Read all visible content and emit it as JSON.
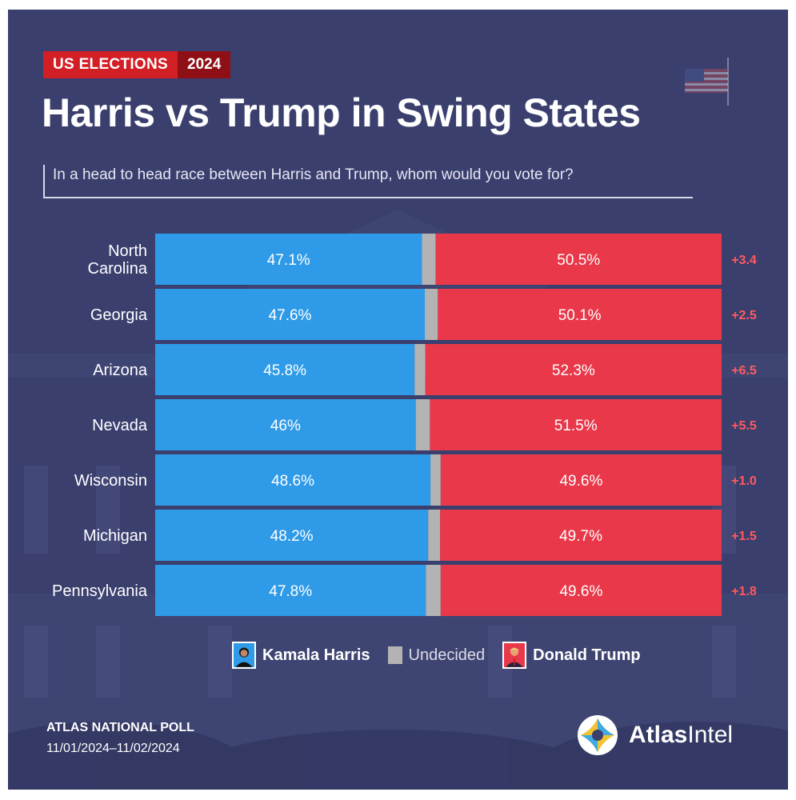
{
  "header": {
    "tag_left": "US ELECTIONS",
    "tag_right": "2024",
    "title": "Harris vs Trump in Swing States",
    "subtitle": "In a head to head race between Harris and Trump, whom would you vote for?"
  },
  "chart_data": {
    "type": "bar",
    "stacked": true,
    "orientation": "horizontal",
    "categories": [
      "North Carolina",
      "Georgia",
      "Arizona",
      "Nevada",
      "Wisconsin",
      "Michigan",
      "Pennsylvania"
    ],
    "category_label_lines": [
      [
        "North",
        "Carolina"
      ],
      [
        "Georgia"
      ],
      [
        "Arizona"
      ],
      [
        "Nevada"
      ],
      [
        "Wisconsin"
      ],
      [
        "Michigan"
      ],
      [
        "Pennsylvania"
      ]
    ],
    "series": [
      {
        "name": "Kamala Harris",
        "values": [
          47.1,
          47.6,
          45.8,
          46,
          48.6,
          48.2,
          47.8
        ],
        "labels": [
          "47.1%",
          "47.6%",
          "45.8%",
          "46%",
          "48.6%",
          "48.2%",
          "47.8%"
        ],
        "color": "#2f9be8"
      },
      {
        "name": "Undecided",
        "values": [
          2.4,
          2.3,
          1.9,
          2.5,
          1.8,
          2.1,
          2.6
        ],
        "color": "#b3b3b3"
      },
      {
        "name": "Donald Trump",
        "values": [
          50.5,
          50.1,
          52.3,
          51.5,
          49.6,
          49.7,
          49.6
        ],
        "labels": [
          "50.5%",
          "50.1%",
          "52.3%",
          "51.5%",
          "49.6%",
          "49.7%",
          "49.6%"
        ],
        "color": "#e8384a"
      }
    ],
    "margins": [
      "+3.4",
      "+2.5",
      "+6.5",
      "+5.5",
      "+1.0",
      "+1.5",
      "+1.8"
    ],
    "margin_color": "#ff5a5f",
    "xlim": [
      0,
      100
    ],
    "legend_position": "bottom-center"
  },
  "legend": {
    "harris": "Kamala Harris",
    "undecided": "Undecided",
    "trump": "Donald Trump"
  },
  "footer": {
    "source": "ATLAS NATIONAL POLL",
    "dates": "11/01/2024–11/02/2024",
    "brand_a": "Atlas",
    "brand_b": "Intel"
  }
}
